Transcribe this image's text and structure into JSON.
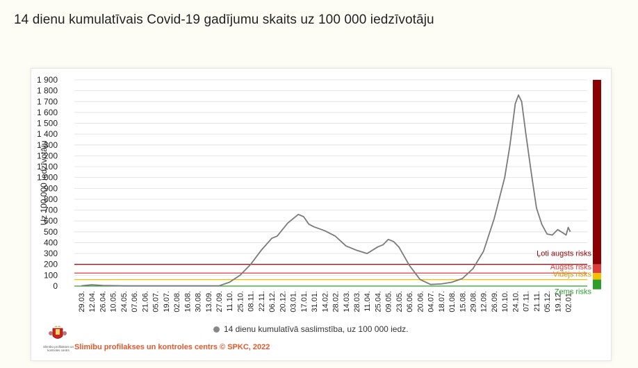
{
  "page": {
    "title": "14 dienu kumulatīvais Covid-19 gadījumu skaits uz 100 000 iedzīvotāju"
  },
  "footer": {
    "logo_text": "Slimību profilakses un kontroles centrs",
    "credit": "Slimību profilakses un kontroles centrs © SPKC, 2022"
  },
  "colors": {
    "series": "#7a7a7a",
    "grid": "#e4e4e4",
    "risk_very_high": "#8b0000",
    "risk_high": "#e03b3b",
    "risk_medium": "#f5c000",
    "risk_low": "#2aa02a",
    "credit": "#e8562a"
  },
  "chart_data": {
    "type": "line",
    "title": "14 dienu kumulatīvais Covid-19 gadījumu skaits uz 100 000 iedzīvotāju",
    "xlabel": "",
    "ylabel": "Uz 100 000 iedzīvotāju",
    "ylim": [
      0,
      1900
    ],
    "grid": true,
    "legend_position": "bottom",
    "y_ticks": [
      0,
      100,
      200,
      300,
      400,
      500,
      600,
      700,
      800,
      900,
      1000,
      1100,
      1200,
      1300,
      1400,
      1500,
      1600,
      1700,
      1800,
      1900
    ],
    "y_tick_labels": [
      "0",
      "100",
      "200",
      "300",
      "400",
      "500",
      "600",
      "700",
      "800",
      "900",
      "1 000",
      "1 100",
      "1 200",
      "1 300",
      "1 400",
      "1 500",
      "1 600",
      "1 700",
      "1 800",
      "1 900"
    ],
    "x_tick_labels": [
      "29.03.",
      "12.04.",
      "26.04.",
      "10.05.",
      "24.05.",
      "07.06.",
      "21.06.",
      "05.07.",
      "19.07.",
      "02.08.",
      "16.08.",
      "30.08.",
      "13.09.",
      "27.09.",
      "11.10.",
      "25.10.",
      "08.11.",
      "22.11.",
      "06.12.",
      "20.12.",
      "03.01.",
      "17.01.",
      "31.01.",
      "14.02.",
      "28.02.",
      "14.03.",
      "28.03.",
      "11.04.",
      "25.04.",
      "09.05.",
      "23.05.",
      "06.06.",
      "20.06.",
      "04.07.",
      "18.07.",
      "01.08.",
      "15.08.",
      "29.08.",
      "12.09.",
      "26.09.",
      "10.10.",
      "24.10.",
      "07.11.",
      "21.11.",
      "05.12.",
      "19.12.",
      "02.01."
    ],
    "series": [
      {
        "name": "14 dienu kumulatīvā saslimstība, uz 100 000 iedz.",
        "x": [
          0,
          1,
          2,
          3,
          4,
          5,
          6,
          7,
          8,
          9,
          10,
          11,
          12,
          13,
          14,
          15,
          16,
          17,
          18,
          18.5,
          19,
          19.5,
          20,
          20.5,
          21,
          21.5,
          22,
          23,
          24,
          25,
          26,
          27,
          28,
          28.5,
          29,
          29.5,
          30,
          31,
          32,
          33,
          34,
          35,
          36,
          37,
          38,
          39,
          40,
          40.5,
          41,
          41.3,
          41.6,
          42,
          42.5,
          43,
          43.5,
          44,
          44.5,
          45,
          45.5,
          45.8,
          46,
          46.2
        ],
        "y": [
          2,
          12,
          6,
          4,
          2,
          2,
          2,
          2,
          2,
          2,
          2,
          2,
          2,
          2,
          35,
          100,
          200,
          330,
          440,
          460,
          520,
          580,
          620,
          660,
          640,
          570,
          545,
          510,
          460,
          370,
          330,
          300,
          360,
          380,
          430,
          410,
          360,
          190,
          60,
          15,
          20,
          35,
          70,
          160,
          320,
          620,
          1000,
          1300,
          1680,
          1760,
          1700,
          1400,
          1050,
          720,
          570,
          480,
          470,
          520,
          490,
          470,
          540,
          500
        ]
      }
    ],
    "risk_levels": [
      {
        "label": "Ļoti augsts risks",
        "threshold": 200,
        "color": "#8b0000"
      },
      {
        "label": "Augsts risks",
        "threshold": 120,
        "color": "#e03b3b"
      },
      {
        "label": "Vidējs risks",
        "threshold": 60,
        "color": "#f5c000"
      },
      {
        "label": "Zems risks",
        "threshold": 0,
        "color": "#2aa02a"
      }
    ],
    "risk_bar_bands": [
      {
        "label": "Ļoti augsts risks",
        "from": 200,
        "to": 1900,
        "color": "#8b0000"
      },
      {
        "label": "Augsts risks",
        "from": 120,
        "to": 200,
        "color": "#e03b3b"
      },
      {
        "label": "Vidējs risks",
        "from": 60,
        "to": 120,
        "color": "#f5c000"
      },
      {
        "label": "Zems risks",
        "from": -30,
        "to": 60,
        "color": "#2aa02a"
      }
    ]
  }
}
